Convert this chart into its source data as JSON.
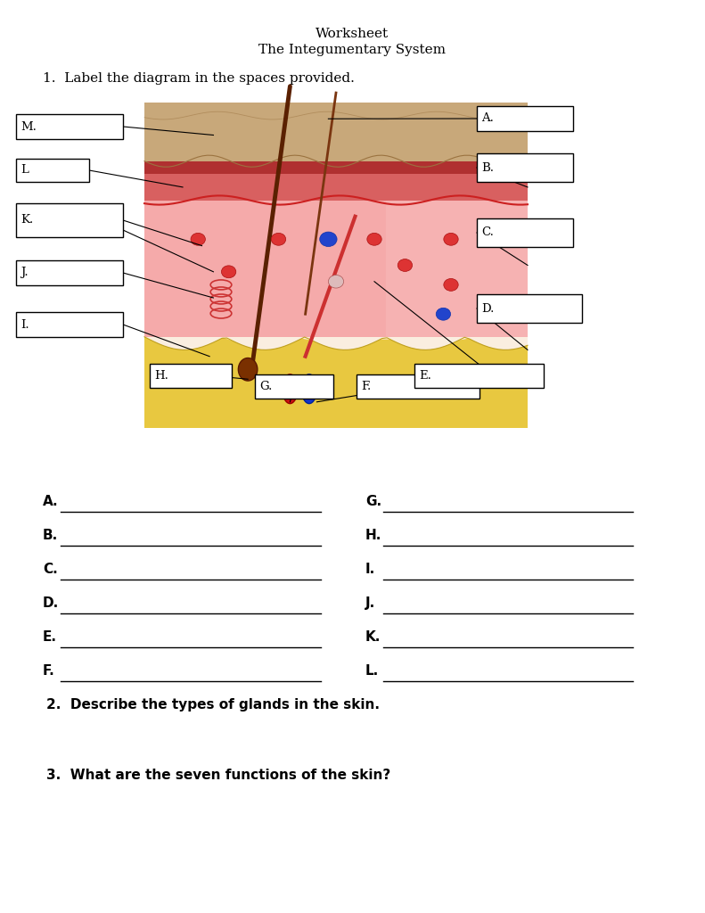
{
  "title_line1": "Worksheet",
  "title_line2": "The Integumentary System",
  "question1": "1.  Label the diagram in the spaces provided.",
  "question2": "2.  Describe the types of glands in the skin.",
  "question3": "3.  What are the seven functions of the skin?",
  "bg_color": "#ffffff",
  "diagram_bg": "#faeee0",
  "fill_labels_col1": [
    "A.",
    "B.",
    "C.",
    "D.",
    "E.",
    "F."
  ],
  "fill_labels_col2": [
    "G.",
    "H.",
    "I.",
    "J.",
    "K.",
    "L."
  ]
}
